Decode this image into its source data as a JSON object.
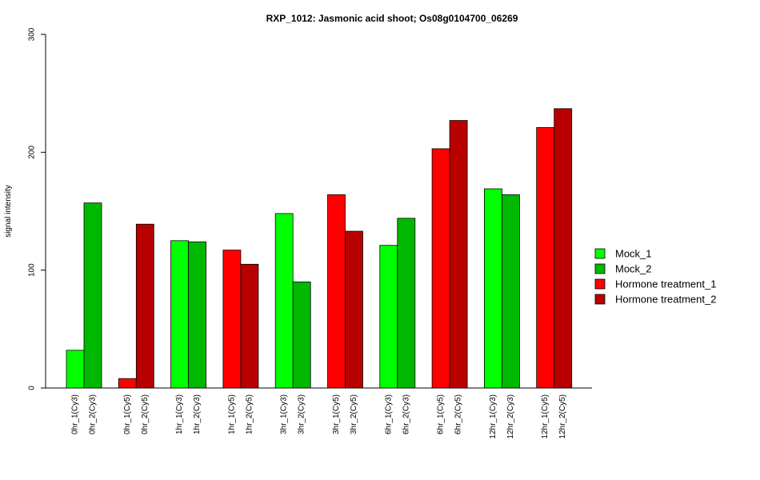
{
  "chart_data": {
    "type": "bar",
    "title": "RXP_1012: Jasmonic acid shoot; Os08g0104700_06269",
    "xlabel": "",
    "ylabel": "signal intensity",
    "ylim": [
      0,
      300
    ],
    "yticks": [
      "0",
      "100",
      "200",
      "300"
    ],
    "grid": false,
    "legend_position": "right",
    "series_legend": [
      {
        "name": "Mock_1",
        "color": "#00ff00"
      },
      {
        "name": "Mock_2",
        "color": "#00b800"
      },
      {
        "name": "Hormone treatment_1",
        "color": "#ff0000"
      },
      {
        "name": "Hormone treatment_2",
        "color": "#b80000"
      }
    ],
    "groups": [
      {
        "bars": [
          {
            "label": "0hr_1(Cy3)",
            "value": 32,
            "series": 0
          },
          {
            "label": "0hr_2(Cy3)",
            "value": 157,
            "series": 1
          }
        ]
      },
      {
        "bars": [
          {
            "label": "0hr_1(Cy5)",
            "value": 8,
            "series": 2
          },
          {
            "label": "0hr_2(Cy5)",
            "value": 139,
            "series": 3
          }
        ]
      },
      {
        "bars": [
          {
            "label": "1hr_1(Cy3)",
            "value": 125,
            "series": 0
          },
          {
            "label": "1hr_2(Cy3)",
            "value": 124,
            "series": 1
          }
        ]
      },
      {
        "bars": [
          {
            "label": "1hr_1(Cy5)",
            "value": 117,
            "series": 2
          },
          {
            "label": "1hr_2(Cy5)",
            "value": 105,
            "series": 3
          }
        ]
      },
      {
        "bars": [
          {
            "label": "3hr_1(Cy3)",
            "value": 148,
            "series": 0
          },
          {
            "label": "3hr_2(Cy3)",
            "value": 90,
            "series": 1
          }
        ]
      },
      {
        "bars": [
          {
            "label": "3hr_1(Cy5)",
            "value": 164,
            "series": 2
          },
          {
            "label": "3hr_2(Cy5)",
            "value": 133,
            "series": 3
          }
        ]
      },
      {
        "bars": [
          {
            "label": "6hr_1(Cy3)",
            "value": 121,
            "series": 0
          },
          {
            "label": "6hr_2(Cy3)",
            "value": 144,
            "series": 1
          }
        ]
      },
      {
        "bars": [
          {
            "label": "6hr_1(Cy5)",
            "value": 203,
            "series": 2
          },
          {
            "label": "6hr_2(Cy5)",
            "value": 227,
            "series": 3
          }
        ]
      },
      {
        "bars": [
          {
            "label": "12hr_1(Cy3)",
            "value": 169,
            "series": 0
          },
          {
            "label": "12hr_2(Cy3)",
            "value": 164,
            "series": 1
          }
        ]
      },
      {
        "bars": [
          {
            "label": "12hr_1(Cy5)",
            "value": 221,
            "series": 2
          },
          {
            "label": "12hr_2(Cy5)",
            "value": 237,
            "series": 3
          }
        ]
      }
    ]
  }
}
